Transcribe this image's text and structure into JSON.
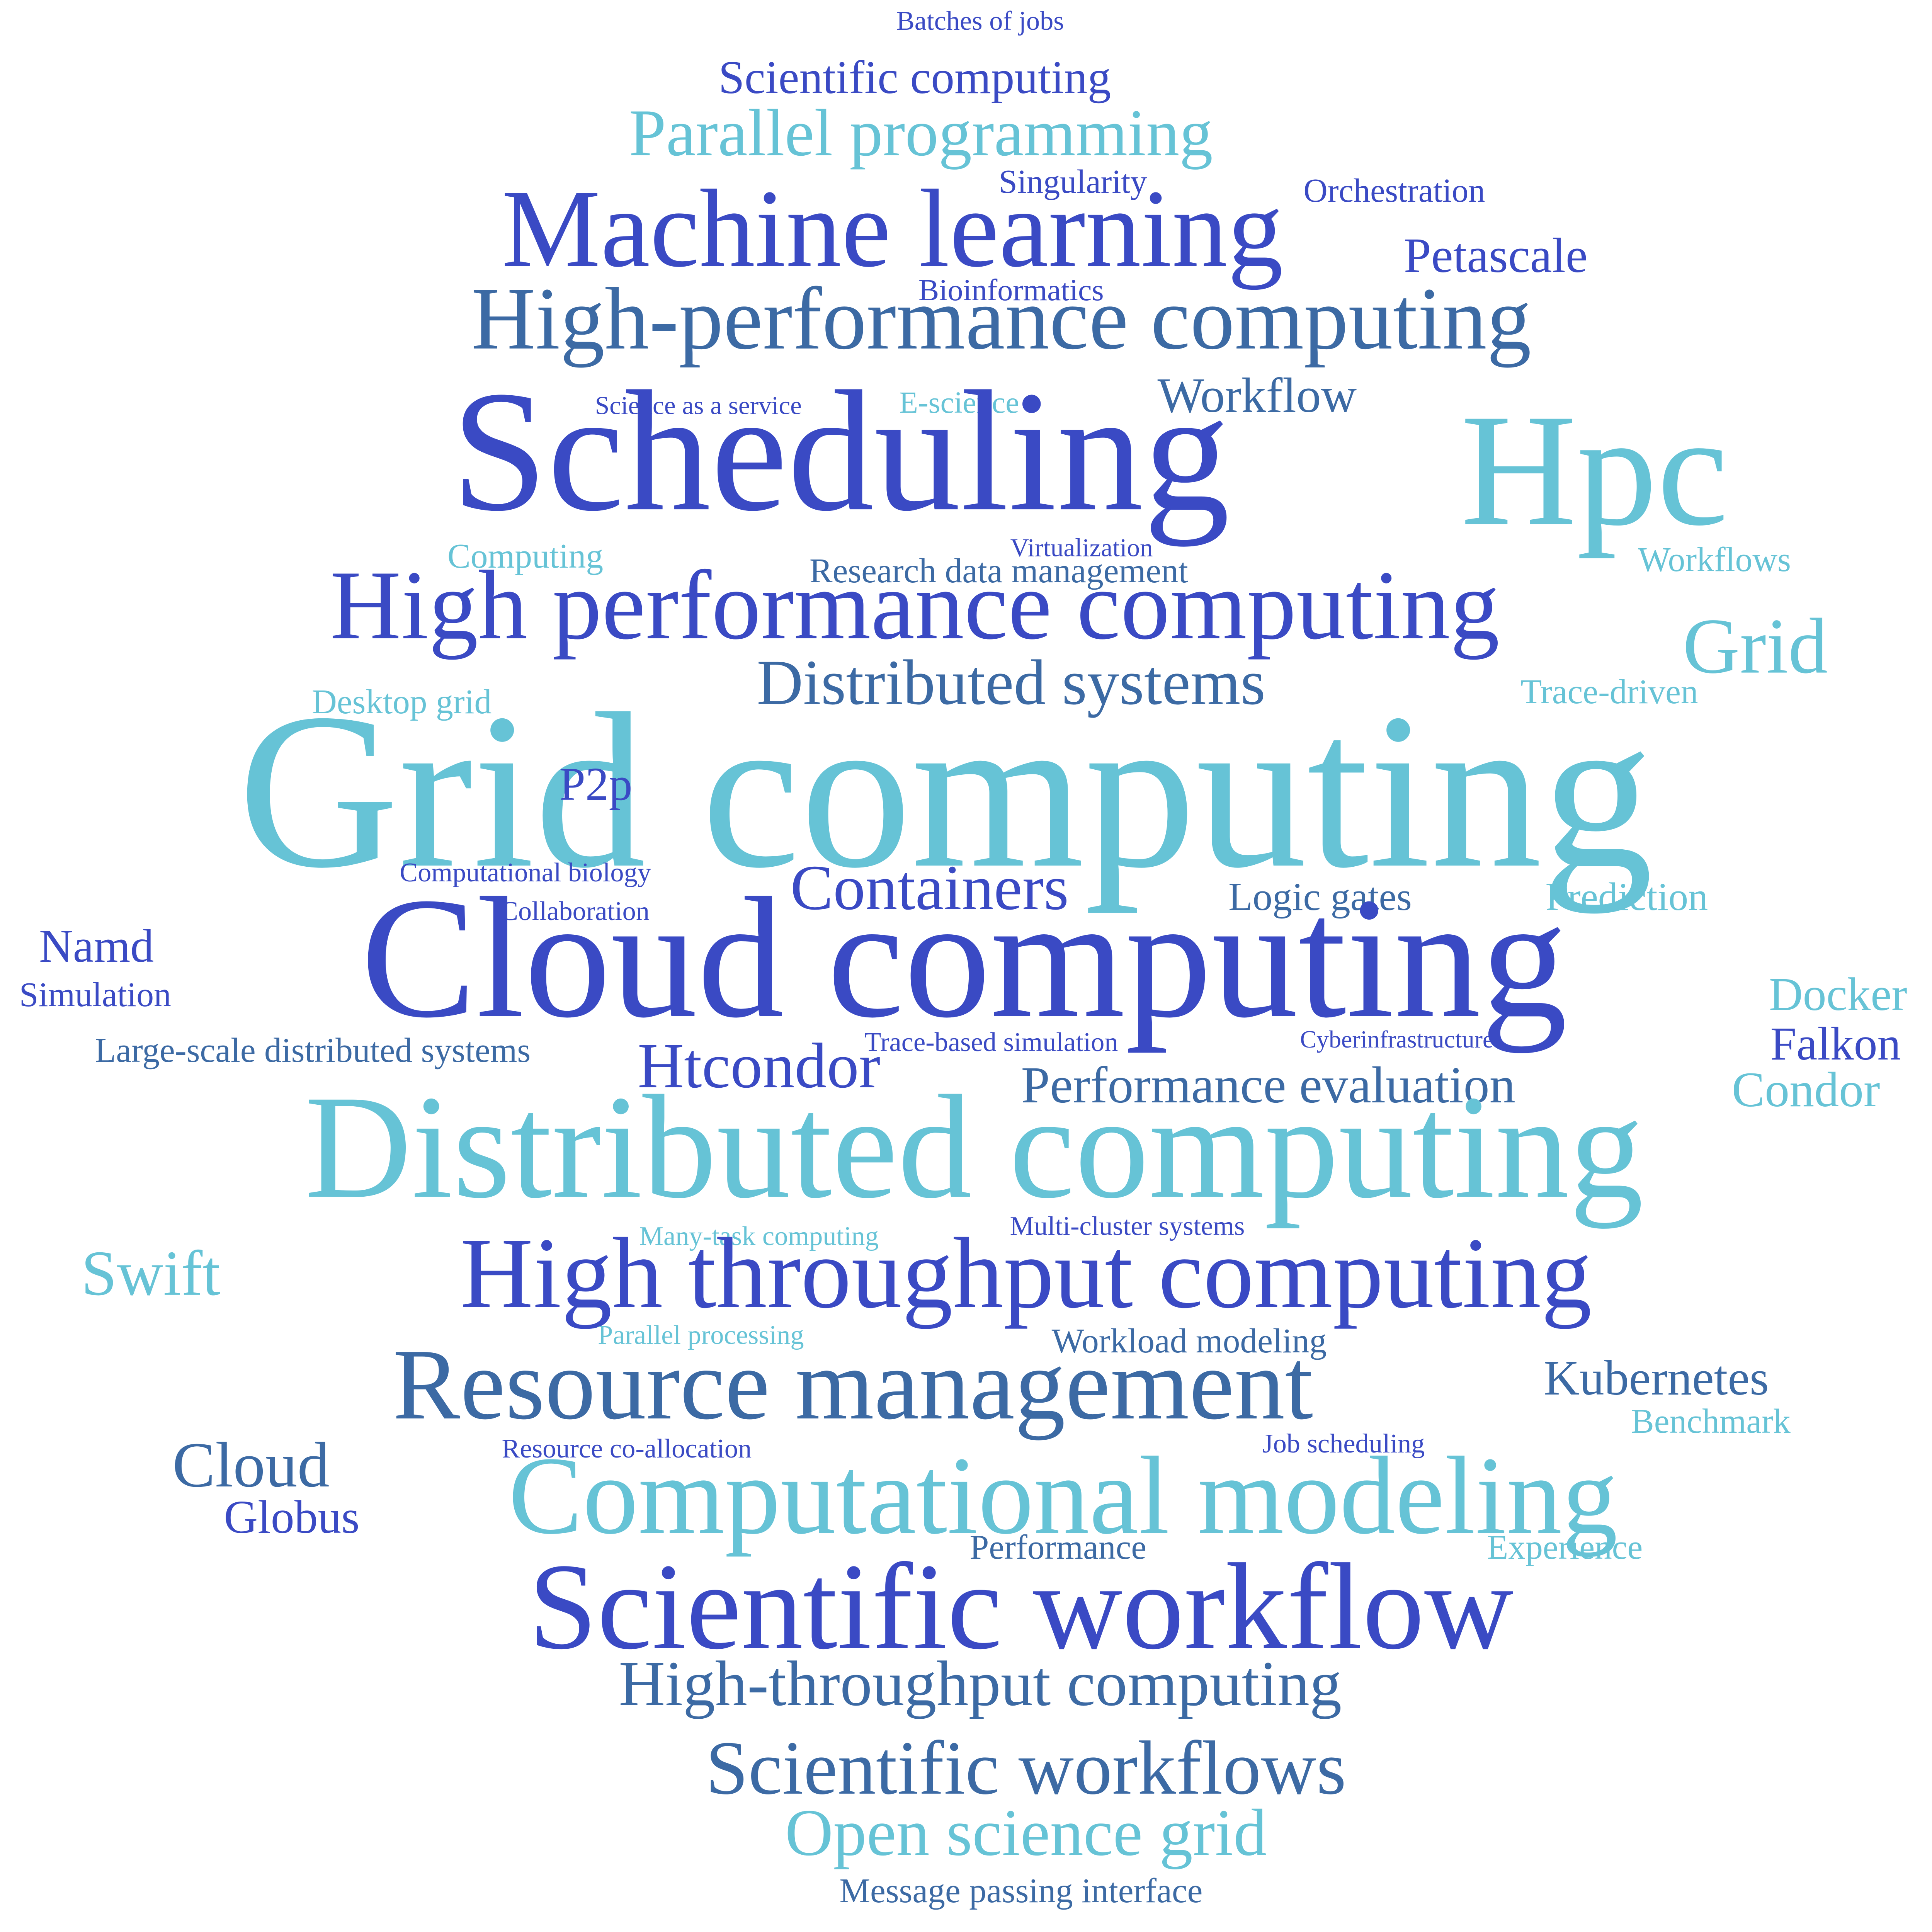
{
  "colors": {
    "royal": "#3a4ac4",
    "steel": "#3c6aa4",
    "sky": "#66c3d6",
    "background": "#ffffff"
  },
  "words": [
    {
      "text": "Batches of jobs",
      "color": "royal"
    },
    {
      "text": "Scientific computing",
      "color": "royal"
    },
    {
      "text": "Parallel programming",
      "color": "sky"
    },
    {
      "text": "Singularity",
      "color": "royal"
    },
    {
      "text": "Orchestration",
      "color": "royal"
    },
    {
      "text": "Machine learning",
      "color": "royal"
    },
    {
      "text": "Petascale",
      "color": "royal"
    },
    {
      "text": "Bioinformatics",
      "color": "royal"
    },
    {
      "text": "High-performance computing",
      "color": "steel"
    },
    {
      "text": "Science as a service",
      "color": "royal"
    },
    {
      "text": "E-science",
      "color": "sky"
    },
    {
      "text": "Workflow",
      "color": "steel"
    },
    {
      "text": "Scheduling",
      "color": "royal"
    },
    {
      "text": "Hpc",
      "color": "sky"
    },
    {
      "text": "Computing",
      "color": "sky"
    },
    {
      "text": "Virtualization",
      "color": "royal"
    },
    {
      "text": "Research data management",
      "color": "steel"
    },
    {
      "text": "Workflows",
      "color": "sky"
    },
    {
      "text": "High performance computing",
      "color": "royal"
    },
    {
      "text": "Grid",
      "color": "sky"
    },
    {
      "text": "Distributed systems",
      "color": "steel"
    },
    {
      "text": "Desktop grid",
      "color": "sky"
    },
    {
      "text": "Trace-driven",
      "color": "sky"
    },
    {
      "text": "Grid computing",
      "color": "sky"
    },
    {
      "text": "P2p",
      "color": "royal"
    },
    {
      "text": "Computational biology",
      "color": "royal"
    },
    {
      "text": "Containers",
      "color": "royal"
    },
    {
      "text": "Logic gates",
      "color": "steel"
    },
    {
      "text": "Prediction",
      "color": "sky"
    },
    {
      "text": "Collaboration",
      "color": "royal"
    },
    {
      "text": "Namd",
      "color": "royal"
    },
    {
      "text": "Cloud computing",
      "color": "royal"
    },
    {
      "text": "Simulation",
      "color": "royal"
    },
    {
      "text": "Docker",
      "color": "sky"
    },
    {
      "text": "Trace-based simulation",
      "color": "royal"
    },
    {
      "text": "Cyberinfrastructure",
      "color": "royal"
    },
    {
      "text": "Falkon",
      "color": "royal"
    },
    {
      "text": "Large-scale distributed systems",
      "color": "steel"
    },
    {
      "text": "Htcondor",
      "color": "royal"
    },
    {
      "text": "Performance evaluation",
      "color": "steel"
    },
    {
      "text": "Condor",
      "color": "sky"
    },
    {
      "text": "Distributed computing",
      "color": "sky"
    },
    {
      "text": "Many-task computing",
      "color": "sky"
    },
    {
      "text": "Multi-cluster systems",
      "color": "royal"
    },
    {
      "text": "Swift",
      "color": "sky"
    },
    {
      "text": "High throughput computing",
      "color": "royal"
    },
    {
      "text": "Parallel processing",
      "color": "sky"
    },
    {
      "text": "Workload modeling",
      "color": "steel"
    },
    {
      "text": "Resource management",
      "color": "steel"
    },
    {
      "text": "Kubernetes",
      "color": "steel"
    },
    {
      "text": "Benchmark",
      "color": "sky"
    },
    {
      "text": "Cloud",
      "color": "steel"
    },
    {
      "text": "Resource co-allocation",
      "color": "royal"
    },
    {
      "text": "Job scheduling",
      "color": "royal"
    },
    {
      "text": "Computational modeling",
      "color": "sky"
    },
    {
      "text": "Globus",
      "color": "royal"
    },
    {
      "text": "Performance",
      "color": "steel"
    },
    {
      "text": "Experience",
      "color": "sky"
    },
    {
      "text": "Scientific workflow",
      "color": "royal"
    },
    {
      "text": "High-throughput computing",
      "color": "steel"
    },
    {
      "text": "Scientific workflows",
      "color": "steel"
    },
    {
      "text": "Open science grid",
      "color": "sky"
    },
    {
      "text": "Message passing interface",
      "color": "steel"
    }
  ]
}
